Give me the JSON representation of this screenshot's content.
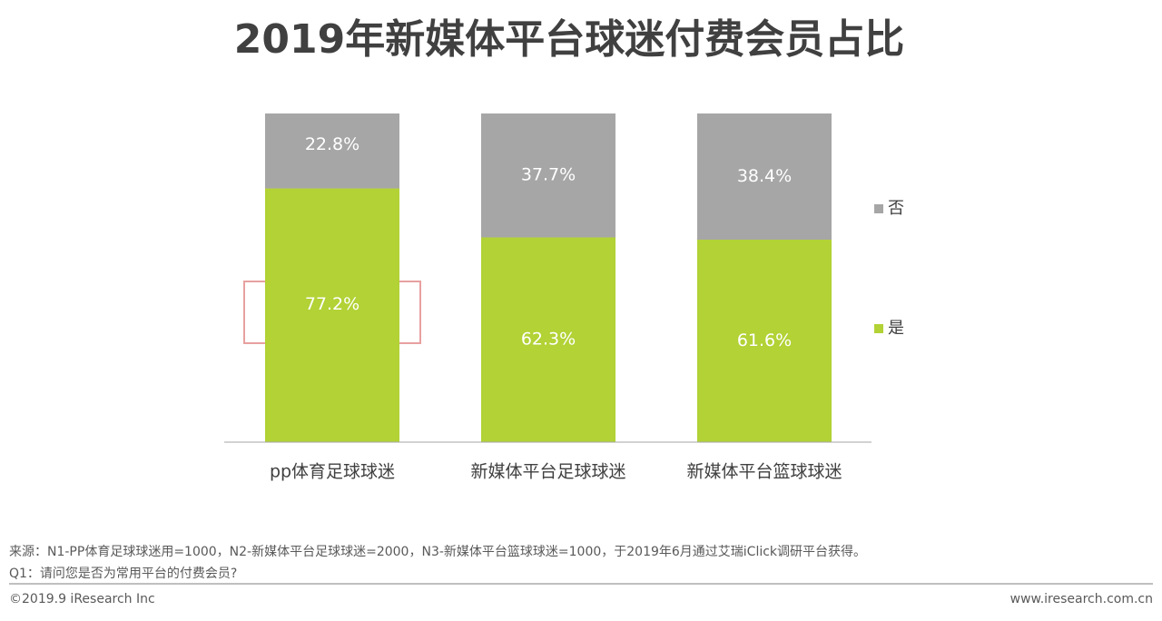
{
  "chart_data": {
    "type": "stacked_bar",
    "title": "2019年新媒体平台球迷付费会员占比",
    "categories": [
      "pp体育足球球迷",
      "新媒体平台足球球迷",
      "新媒体平台篮球球迷"
    ],
    "series": [
      {
        "name": "是",
        "color": "#b2d235",
        "values": [
          77.2,
          62.3,
          61.6
        ],
        "value_labels": [
          "77.2%",
          "62.3%",
          "61.6%"
        ]
      },
      {
        "name": "否",
        "color": "#a6a6a6",
        "values": [
          22.8,
          37.7,
          38.4
        ],
        "value_labels": [
          "22.8%",
          "37.7%",
          "38.4%"
        ]
      }
    ],
    "ylim": [
      0,
      100
    ],
    "legend": "right"
  },
  "footer": {
    "source": "来源：N1-PP体育足球球迷用=1000，N2-新媒体平台足球球迷=2000，N3-新媒体平台篮球球迷=1000，于2019年6月通过艾瑞iClick调研平台获得。",
    "question": "Q1：请问您是否为常用平台的付费会员?",
    "copyright": "©2019.9 iResearch Inc",
    "website": "www.iresearch.com.cn"
  }
}
